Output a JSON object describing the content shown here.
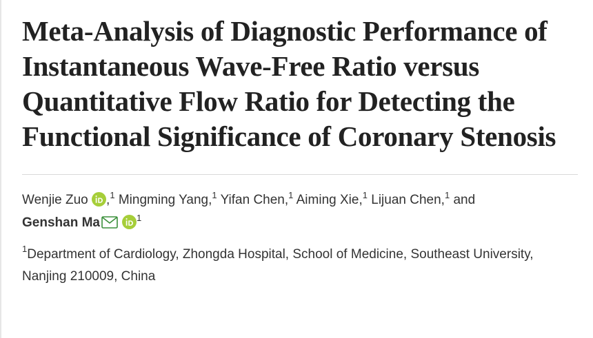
{
  "article": {
    "title": "Meta-Analysis of Diagnostic Performance of Instantaneous Wave-Free Ratio versus Quantitative Flow Ratio for Detecting the Functional Significance of Coronary Stenosis",
    "authors": [
      {
        "name": "Wenjie Zuo",
        "has_orcid": true,
        "affiliation_mark": "1",
        "separator": ","
      },
      {
        "name": "Mingming Yang",
        "affiliation_mark": "1",
        "separator": ","
      },
      {
        "name": "Yifan Chen",
        "affiliation_mark": "1",
        "separator": ","
      },
      {
        "name": "Aiming Xie",
        "affiliation_mark": "1",
        "separator": ","
      },
      {
        "name": "Lijuan Chen",
        "affiliation_mark": "1",
        "separator": ","
      },
      {
        "name": "Genshan Ma",
        "has_email": true,
        "has_orcid": true,
        "affiliation_mark": "1",
        "corresponding": true
      }
    ],
    "and_text": "and",
    "affiliation": {
      "mark": "1",
      "text": "Department of Cardiology, Zhongda Hospital, School of Medicine, Southeast University, Nanjing 210009, China"
    }
  },
  "icons": {
    "orcid": "orcid-icon",
    "email": "mail-icon"
  },
  "colors": {
    "orcid_green": "#A6CE39",
    "title_text": "#222222",
    "body_text": "#333333",
    "divider": "#d9d9d9",
    "mail_green": "#3a8f3a"
  }
}
